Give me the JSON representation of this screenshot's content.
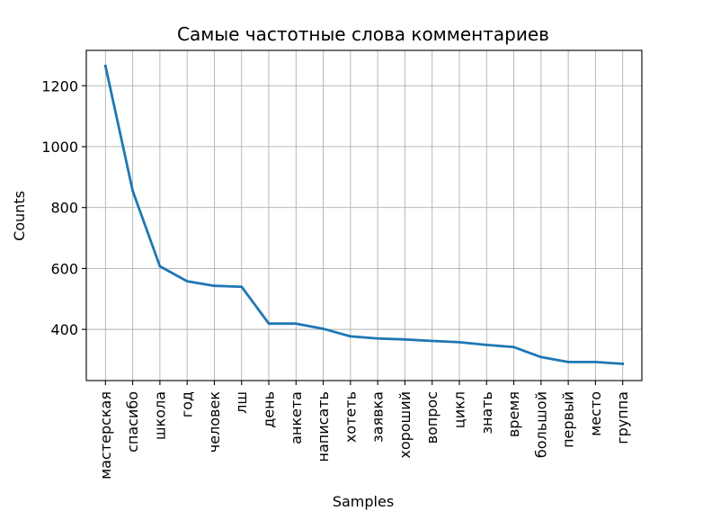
{
  "chart_data": {
    "type": "line",
    "title": "Самые частотные слова комментариев",
    "xlabel": "Samples",
    "ylabel": "Counts",
    "categories": [
      "мастерская",
      "спасибо",
      "школа",
      "год",
      "человек",
      "лш",
      "день",
      "анкета",
      "написать",
      "хотеть",
      "заявка",
      "хороший",
      "вопрос",
      "цикл",
      "знать",
      "время",
      "большой",
      "первый",
      "место",
      "группа"
    ],
    "series": [
      {
        "name": "",
        "color": "#1f77b4",
        "values": [
          1265,
          855,
          607,
          558,
          543,
          540,
          419,
          419,
          402,
          377,
          370,
          367,
          362,
          358,
          349,
          342,
          309,
          293,
          293,
          287
        ]
      }
    ],
    "ylim": [
      232,
      1316
    ],
    "yticks": [
      400,
      600,
      800,
      1000,
      1200
    ],
    "grid": true,
    "legend": "none"
  }
}
